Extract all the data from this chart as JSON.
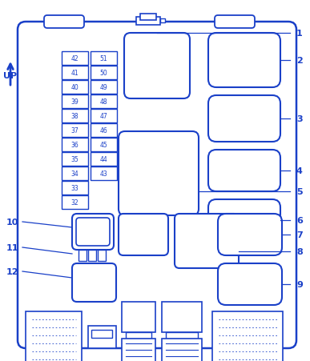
{
  "bg_color": "#ffffff",
  "line_color": "#1a40c8",
  "text_color": "#1a40c8",
  "fig_width": 3.87,
  "fig_height": 4.52,
  "up_label": "UP",
  "fuse_labels_col1": [
    "42",
    "41",
    "40",
    "39",
    "38",
    "37",
    "36",
    "35",
    "34",
    "33",
    "32"
  ],
  "fuse_labels_col2": [
    "51",
    "50",
    "49",
    "48",
    "47",
    "46",
    "45",
    "44",
    "43"
  ]
}
